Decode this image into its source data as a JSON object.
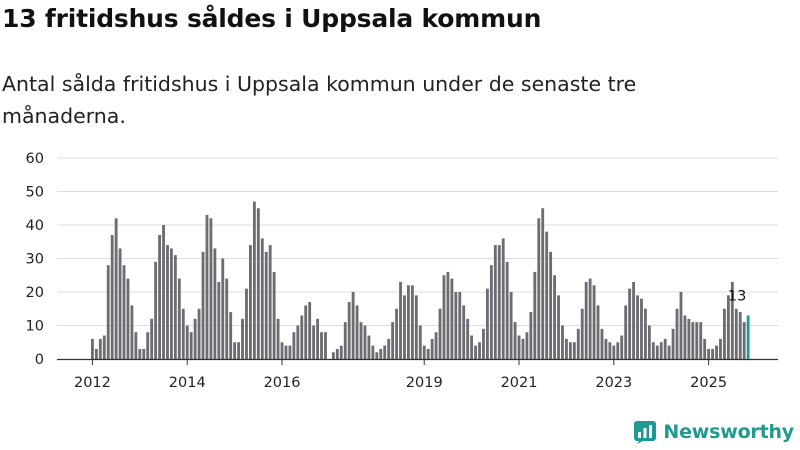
{
  "header": {
    "title": "13 fritidshus såldes i Uppsala kommun",
    "subtitle": "Antal sålda fritidshus i Uppsala kommun under de senaste tre månaderna."
  },
  "brand": {
    "name": "Newsworthy",
    "color": "#1f9a91"
  },
  "colors": {
    "bar": "#6d6c72",
    "highlight": "#1a9e93",
    "grid": "#dddddd",
    "axis": "#333333"
  },
  "chart_data": {
    "type": "bar",
    "title": "13 fritidshus såldes i Uppsala kommun",
    "subtitle": "Antal sålda fritidshus i Uppsala kommun under de senaste tre månaderna.",
    "xlabel": "",
    "ylabel": "",
    "ylim": [
      0,
      60
    ],
    "yticks": [
      0,
      10,
      20,
      30,
      40,
      50,
      60
    ],
    "x_tick_labels": [
      {
        "label": "2012",
        "index": 0
      },
      {
        "label": "2014",
        "index": 24
      },
      {
        "label": "2016",
        "index": 48
      },
      {
        "label": "2019",
        "index": 84
      },
      {
        "label": "2021",
        "index": 108
      },
      {
        "label": "2023",
        "index": 132
      },
      {
        "label": "2025",
        "index": 156
      }
    ],
    "values": [
      6,
      3,
      6,
      7,
      28,
      37,
      42,
      33,
      28,
      24,
      16,
      8,
      3,
      3,
      8,
      12,
      29,
      37,
      40,
      34,
      33,
      31,
      24,
      15,
      10,
      8,
      12,
      15,
      32,
      43,
      42,
      33,
      23,
      30,
      24,
      14,
      5,
      5,
      12,
      21,
      34,
      47,
      45,
      36,
      32,
      34,
      26,
      12,
      5,
      4,
      4,
      8,
      10,
      13,
      16,
      17,
      10,
      12,
      8,
      8,
      0,
      2,
      3,
      4,
      11,
      17,
      20,
      16,
      11,
      10,
      7,
      4,
      2,
      3,
      4,
      6,
      11,
      15,
      23,
      19,
      22,
      22,
      19,
      10,
      4,
      3,
      6,
      8,
      15,
      25,
      26,
      24,
      20,
      20,
      16,
      12,
      7,
      4,
      5,
      9,
      21,
      28,
      34,
      34,
      36,
      29,
      20,
      11,
      7,
      6,
      8,
      14,
      26,
      42,
      45,
      38,
      32,
      25,
      19,
      10,
      6,
      5,
      5,
      9,
      15,
      23,
      24,
      22,
      16,
      9,
      6,
      5,
      4,
      5,
      7,
      16,
      21,
      23,
      19,
      18,
      15,
      10,
      5,
      4,
      5,
      6,
      4,
      9,
      15,
      20,
      13,
      12,
      11,
      11,
      11,
      6,
      3,
      3,
      4,
      6,
      15,
      19,
      23,
      15,
      14,
      11,
      13
    ],
    "highlight_last": true,
    "annotation": {
      "text": "13",
      "index": 166
    }
  }
}
